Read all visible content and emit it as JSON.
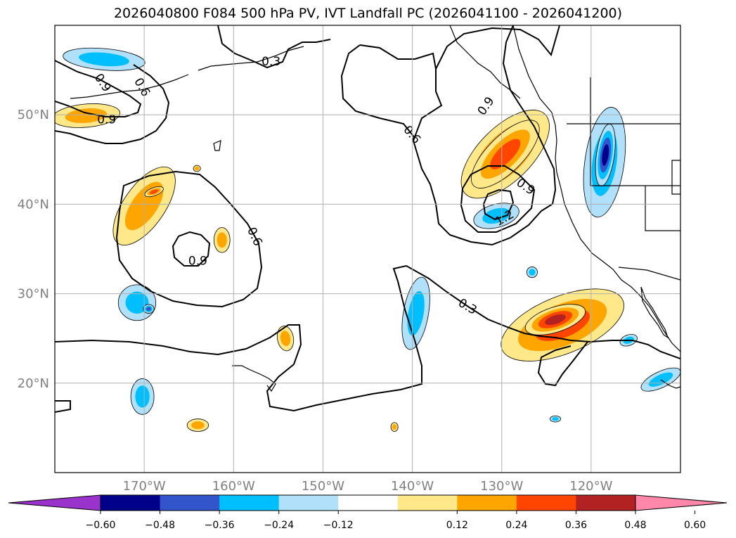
{
  "title": "2026040800 F084 500 hPa PV, IVT Landfall PC (2026041100 - 2026041200)",
  "map": {
    "lon_range": [
      -180,
      -110
    ],
    "lat_range": [
      10,
      60
    ],
    "lon_ticks": [
      {
        "lon": -170,
        "label": "170°W"
      },
      {
        "lon": -160,
        "label": "160°W"
      },
      {
        "lon": -150,
        "label": "150°W"
      },
      {
        "lon": -140,
        "label": "140°W"
      },
      {
        "lon": -130,
        "label": "130°W"
      },
      {
        "lon": -120,
        "label": "120°W"
      }
    ],
    "lat_ticks": [
      {
        "lat": 20,
        "label": "20°N"
      },
      {
        "lat": 30,
        "label": "30°N"
      },
      {
        "lat": 40,
        "label": "40°N"
      },
      {
        "lat": 50,
        "label": "50°N"
      }
    ],
    "contour_labels": [
      {
        "text": "0.3",
        "lon": -155.8,
        "lat": 56.0,
        "rot": 0
      },
      {
        "text": "0.9",
        "lon": -174.6,
        "lat": 53.6,
        "rot": 55
      },
      {
        "text": "0.6",
        "lon": -170.2,
        "lat": 53.1,
        "rot": 60
      },
      {
        "text": "0.6",
        "lon": -140.0,
        "lat": 47.8,
        "rot": 50
      },
      {
        "text": "0.9",
        "lon": -131.8,
        "lat": 51.0,
        "rot": -55
      },
      {
        "text": "0.9",
        "lon": -127.3,
        "lat": 42.0,
        "rot": 35
      },
      {
        "text": "1.2",
        "lon": -129.7,
        "lat": 38.5,
        "rot": -30
      },
      {
        "text": "0.9",
        "lon": -174.2,
        "lat": 49.5,
        "rot": 0
      },
      {
        "text": "0.6",
        "lon": -157.6,
        "lat": 36.4,
        "rot": 65
      },
      {
        "text": "0.9",
        "lon": -164.0,
        "lat": 33.7,
        "rot": 0
      },
      {
        "text": "0.3",
        "lon": -133.8,
        "lat": 28.6,
        "rot": 30
      }
    ]
  },
  "colorbar": {
    "ticks": [
      "−0.60",
      "−0.48",
      "−0.36",
      "−0.24",
      "−0.12",
      "0.12",
      "0.24",
      "0.36",
      "0.48",
      "0.60"
    ],
    "colors": [
      "#9933cc",
      "#00008b",
      "#3355cc",
      "#00bfff",
      "#b0e0fa",
      "#ffffff",
      "#ffe88a",
      "#ffa500",
      "#ff4500",
      "#b22222",
      "#ff88aa"
    ]
  },
  "fields": {
    "ivt_positive": [
      {
        "name": "se-subtropical-plume",
        "lon": -123.2,
        "lat": 26.5,
        "rx": 7.3,
        "ry": 3.2,
        "rot": -22,
        "level": 3
      },
      {
        "name": "se-subtropical-core",
        "lon": -124.0,
        "lat": 27.1,
        "rx": 3.5,
        "ry": 1.4,
        "rot": -18,
        "level": 4
      },
      {
        "name": "pacific-northwest-plume",
        "lon": -129.6,
        "lat": 45.6,
        "rx": 6.3,
        "ry": 3.0,
        "rot": -45,
        "level": 3
      },
      {
        "name": "pacific-northwest-core",
        "lon": -129.6,
        "lat": 45.6,
        "rx": 5.0,
        "ry": 2.0,
        "rot": -45,
        "level": 3
      },
      {
        "name": "central-pacific-arc",
        "lon": -170.0,
        "lat": 39.8,
        "rx": 5.1,
        "ry": 2.3,
        "rot": -55,
        "level": 2
      },
      {
        "name": "central-pacific-arc-core",
        "lon": -168.9,
        "lat": 41.4,
        "rx": 1.1,
        "ry": 0.45,
        "rot": -20,
        "level": 3
      },
      {
        "name": "aleutian-west-band",
        "lon": -176.5,
        "lat": 49.9,
        "rx": 3.8,
        "ry": 1.3,
        "rot": -5,
        "level": 2
      },
      {
        "name": "mid-pacific-cell",
        "lon": -161.3,
        "lat": 36.0,
        "rx": 0.9,
        "ry": 1.4,
        "rot": 0,
        "level": 2
      },
      {
        "name": "hawaii-north-cell",
        "lon": -154.2,
        "lat": 25.0,
        "rx": 0.9,
        "ry": 1.4,
        "rot": -10,
        "level": 2
      },
      {
        "name": "hawaii-west-cell",
        "lon": -164.0,
        "lat": 15.3,
        "rx": 1.2,
        "ry": 0.7,
        "rot": 0,
        "level": 2
      },
      {
        "name": "small-cell-142w",
        "lon": -142.0,
        "lat": 15.1,
        "rx": 0.4,
        "ry": 0.5,
        "rot": 0,
        "level": 2
      },
      {
        "name": "small-cell-164w",
        "lon": -164.1,
        "lat": 44.0,
        "rx": 0.4,
        "ry": 0.35,
        "rot": 0,
        "level": 2
      }
    ],
    "ivt_negative": [
      {
        "name": "intermountain-west-band",
        "lon": -118.5,
        "lat": 44.7,
        "rx": 6.2,
        "ry": 2.2,
        "rot": -82,
        "level": 2
      },
      {
        "name": "intermountain-west-core",
        "lon": -118.4,
        "lat": 45.5,
        "rx": 3.5,
        "ry": 1.0,
        "rot": -82,
        "level": 4
      },
      {
        "name": "offshore-california-cell",
        "lon": -130.6,
        "lat": 38.7,
        "rx": 2.6,
        "ry": 1.3,
        "rot": -15,
        "level": 2
      },
      {
        "name": "east-pacific-band",
        "lon": -139.6,
        "lat": 27.8,
        "rx": 4.1,
        "ry": 1.4,
        "rot": -80,
        "level": 2
      },
      {
        "name": "aleutian-northwest-cell",
        "lon": -174.5,
        "lat": 56.2,
        "rx": 4.6,
        "ry": 1.2,
        "rot": 5,
        "level": 2
      },
      {
        "name": "subtropical-west-cell",
        "lon": -170.8,
        "lat": 29.0,
        "rx": 2.1,
        "ry": 2.0,
        "rot": 0,
        "level": 2
      },
      {
        "name": "subtropical-west-core",
        "lon": -169.5,
        "lat": 28.3,
        "rx": 0.6,
        "ry": 0.5,
        "rot": 0,
        "level": 3
      },
      {
        "name": "tropical-west-cell",
        "lon": -170.2,
        "lat": 18.5,
        "rx": 1.3,
        "ry": 2.0,
        "rot": 0,
        "level": 2
      },
      {
        "name": "baja-cell",
        "lon": -115.8,
        "lat": 24.8,
        "rx": 1.0,
        "ry": 0.6,
        "rot": -20,
        "level": 2
      },
      {
        "name": "mexico-coast-cell",
        "lon": -112.2,
        "lat": 20.4,
        "rx": 2.4,
        "ry": 0.9,
        "rot": -25,
        "level": 2
      },
      {
        "name": "small-cell-127w",
        "lon": -126.6,
        "lat": 32.4,
        "rx": 0.6,
        "ry": 0.6,
        "rot": 0,
        "level": 2
      },
      {
        "name": "small-cell-124w",
        "lon": -124.0,
        "lat": 16.0,
        "rx": 0.6,
        "ry": 0.35,
        "rot": 0,
        "level": 2
      }
    ]
  }
}
